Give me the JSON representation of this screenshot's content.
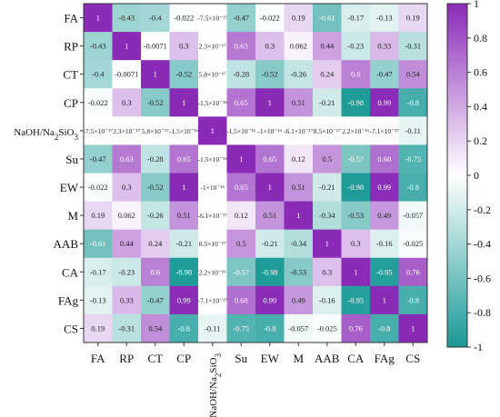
{
  "chart_data": {
    "type": "heatmap",
    "row_labels": [
      "FA",
      "RP",
      "CT",
      "CP",
      "NaOH/Na2SiO3",
      "Su",
      "EW",
      "M",
      "AAB",
      "CA",
      "FAg",
      "CS"
    ],
    "col_labels": [
      "FA",
      "RP",
      "CT",
      "CP",
      "NaOH/Na2SiO3",
      "Su",
      "EW",
      "M",
      "AAB",
      "CA",
      "FAg",
      "CS"
    ],
    "cell_labels": [
      [
        "1",
        "-0.43",
        "-0.4",
        "-0.022",
        "-7.5×10⁻¹⁷",
        "-0.47",
        "-0.022",
        "0.19",
        "-0.61",
        "-0.17",
        "-0.13",
        "0.19"
      ],
      [
        "-0.43",
        "1",
        "-0.0071",
        "0.3",
        "2.3×10⁻¹⁷",
        "0.63",
        "0.3",
        "0.062",
        "0.44",
        "-0.23",
        "0.33",
        "-0.31"
      ],
      [
        "-0.4",
        "-0.0071",
        "1",
        "-0.52",
        "5.8×10⁻¹⁷",
        "-0.28",
        "-0.52",
        "-0.26",
        "0.24",
        "0.6",
        "-0.47",
        "0.54"
      ],
      [
        "-0.022",
        "0.3",
        "-0.52",
        "1",
        "-1.5×10⁻¹⁶",
        "0.65",
        "1",
        "0.51",
        "-0.21",
        "-0.98",
        "0.99",
        "-0.8"
      ],
      [
        "-7.5×10⁻¹⁷",
        "2.3×10⁻¹⁷",
        "5.8×10⁻¹⁷",
        "-1.5×10⁻¹⁶",
        "1",
        "-1.5×10⁻¹⁶",
        "-1×10⁻¹⁶",
        "-6.1×10⁻¹⁷",
        "8.5×10⁻¹⁷",
        "2.2×10⁻¹⁶",
        "-7.1×10⁻¹⁷",
        "-0.11"
      ],
      [
        "-0.47",
        "0.63",
        "-0.28",
        "0.65",
        "-1.5×10⁻¹⁶",
        "1",
        "0.65",
        "0.12",
        "0.5",
        "-0.57",
        "0.68",
        "-0.75"
      ],
      [
        "-0.022",
        "0.3",
        "-0.52",
        "1",
        "-1×10⁻¹⁶",
        "0.65",
        "1",
        "0.51",
        "-0.21",
        "-0.98",
        "0.99",
        "-0.8"
      ],
      [
        "0.19",
        "0.062",
        "-0.26",
        "0.51",
        "-6.1×10⁻¹⁷",
        "0.12",
        "0.51",
        "1",
        "-0.34",
        "-0.53",
        "0.49",
        "-0.057"
      ],
      [
        "-0.61",
        "0.44",
        "0.24",
        "-0.21",
        "8.5×10⁻¹⁷",
        "0.5",
        "-0.21",
        "-0.34",
        "1",
        "0.3",
        "-0.16",
        "-0.025"
      ],
      [
        "-0.17",
        "-0.23",
        "0.6",
        "-0.98",
        "2.2×10⁻¹⁶",
        "-0.57",
        "-0.98",
        "-0.53",
        "0.3",
        "1",
        "-0.95",
        "0.76"
      ],
      [
        "-0.13",
        "0.33",
        "-0.47",
        "0.99",
        "-7.1×10⁻¹⁷",
        "0.68",
        "0.99",
        "0.49",
        "-0.16",
        "-0.95",
        "1",
        "-0.8"
      ],
      [
        "0.19",
        "-0.31",
        "0.54",
        "-0.8",
        "-0.11",
        "-0.75",
        "-0.8",
        "-0.057",
        "-0.025",
        "0.76",
        "-0.8",
        "1"
      ]
    ],
    "colorbar_ticks": [
      "1",
      "0.8",
      "0.6",
      "0.4",
      "0.2",
      "0",
      "-0.2",
      "-0.4",
      "-0.6",
      "-0.8",
      "-1"
    ],
    "value_range": [
      -1,
      1
    ],
    "colors": {
      "negative": "#1a9a96",
      "zero": "#ffffff",
      "positive": "#8a2bb8"
    },
    "legend_position": "right"
  }
}
